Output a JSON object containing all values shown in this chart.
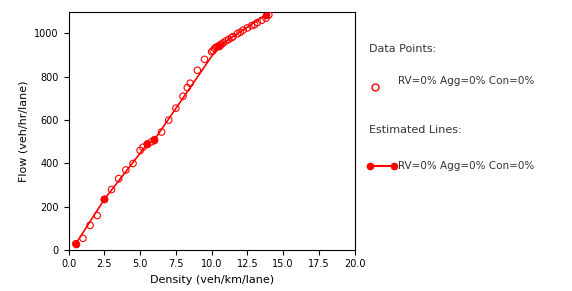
{
  "scatter_x": [
    0.5,
    1.0,
    1.5,
    2.0,
    2.5,
    3.0,
    3.5,
    4.0,
    4.5,
    5.0,
    5.2,
    5.5,
    5.8,
    6.0,
    6.5,
    7.0,
    7.5,
    8.0,
    8.3,
    8.5,
    9.0,
    9.5,
    10.0,
    10.1,
    10.2,
    10.3,
    10.4,
    10.5,
    10.6,
    10.7,
    10.8,
    11.0,
    11.2,
    11.4,
    11.5,
    11.8,
    12.0,
    12.2,
    12.5,
    12.8,
    13.0,
    13.2,
    13.5,
    13.8,
    14.0
  ],
  "scatter_y": [
    30,
    55,
    115,
    160,
    235,
    280,
    330,
    370,
    400,
    460,
    475,
    490,
    500,
    510,
    545,
    600,
    655,
    710,
    750,
    770,
    830,
    880,
    915,
    920,
    930,
    935,
    938,
    942,
    946,
    950,
    956,
    965,
    972,
    980,
    985,
    998,
    1005,
    1015,
    1025,
    1035,
    1040,
    1050,
    1060,
    1070,
    1085
  ],
  "line_x": [
    0.5,
    2.5,
    5.5,
    6.0,
    10.5,
    13.8
  ],
  "line_y": [
    30,
    235,
    490,
    510,
    942,
    1085
  ],
  "color": "#FF0000",
  "xlabel": "Density (veh/km/lane)",
  "ylabel": "Flow (veh/hr/lane)",
  "xlim": [
    0.0,
    20.0
  ],
  "ylim": [
    0,
    1100
  ],
  "xticks": [
    0.0,
    2.5,
    5.0,
    7.5,
    10.0,
    12.5,
    15.0,
    17.5,
    20.0
  ],
  "yticks": [
    0,
    200,
    400,
    600,
    800,
    1000
  ],
  "legend_scatter_label": "RV=0% Agg=0% Con=0%",
  "legend_line_label": "RV=0% Agg=0% Con=0%",
  "legend_title_points": "Data Points:",
  "legend_title_lines": "Estimated Lines:",
  "fig_width": 5.72,
  "fig_height": 2.91
}
